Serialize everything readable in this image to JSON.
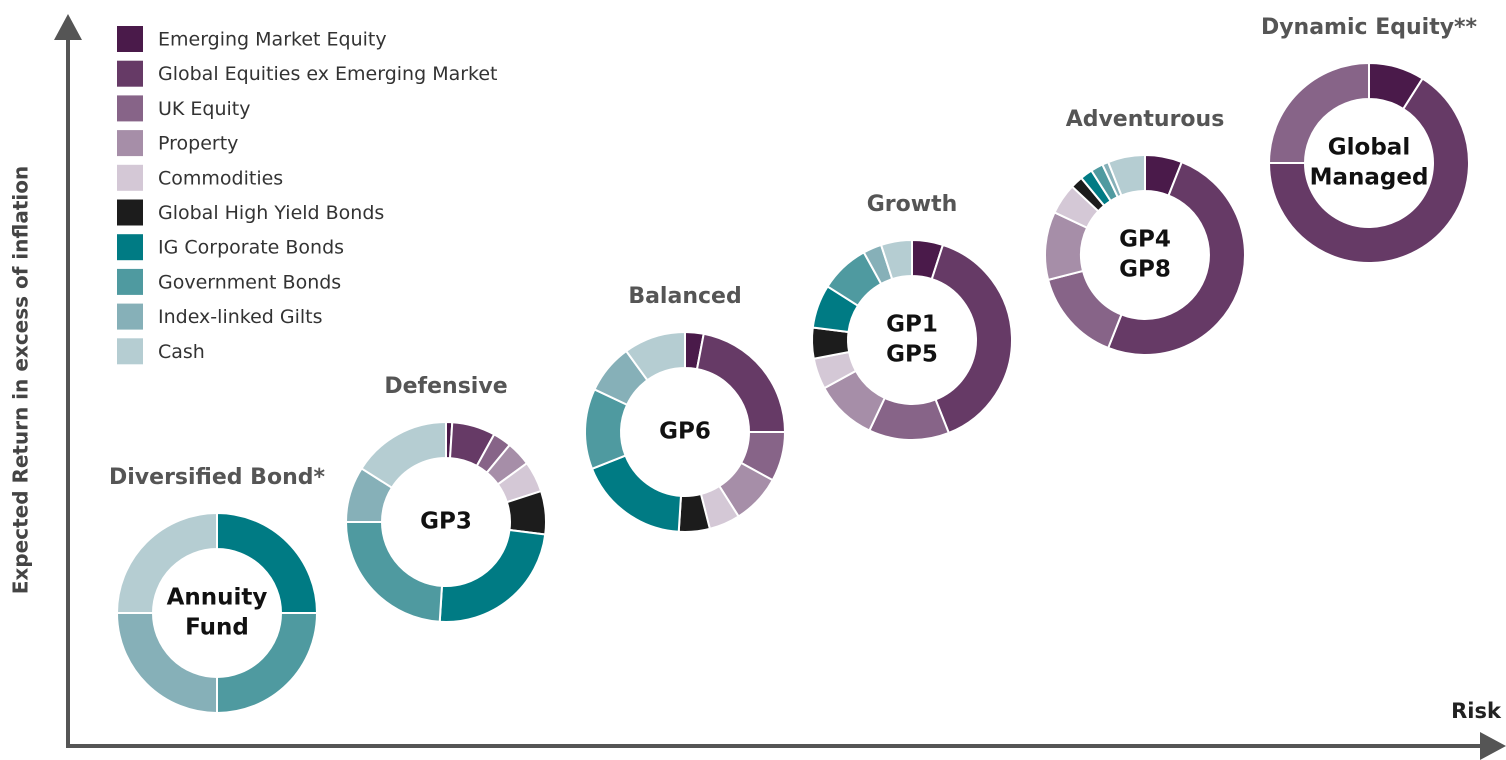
{
  "legend": [
    {
      "name": "Emerging Market Equity",
      "color": "#4a1a4a"
    },
    {
      "name": "Global Equities ex Emerging Market",
      "color": "#663a66"
    },
    {
      "name": "UK Equity",
      "color": "#876488"
    },
    {
      "name": "Property",
      "color": "#a68ea8"
    },
    {
      "name": "Commodities",
      "color": "#d4c8d6"
    },
    {
      "name": "Global High Yield Bonds",
      "color": "#1c1c1c"
    },
    {
      "name": "IG Corporate Bonds",
      "color": "#007b84"
    },
    {
      "name": "Government Bonds",
      "color": "#4f9aa0"
    },
    {
      "name": "Index-linked Gilts",
      "color": "#86b0b8"
    },
    {
      "name": "Cash",
      "color": "#b5cdd2"
    }
  ],
  "axes": {
    "y_label": "Expected Return in excess of inflation",
    "x_label": "Risk"
  },
  "chart_data": [
    {
      "type": "donut",
      "title": "Diversified Bond*",
      "center_label": [
        "Annuity",
        "Fund"
      ],
      "values": [
        0,
        0,
        0,
        0,
        0,
        0,
        25,
        25,
        25,
        25
      ]
    },
    {
      "type": "donut",
      "title": "Defensive",
      "center_label": [
        "GP3"
      ],
      "values": [
        1,
        7,
        3,
        4,
        5,
        7,
        24,
        24,
        9,
        16
      ]
    },
    {
      "type": "donut",
      "title": "Balanced",
      "center_label": [
        "GP6"
      ],
      "values": [
        3,
        22,
        8,
        8,
        5,
        5,
        18,
        13,
        8,
        10
      ]
    },
    {
      "type": "donut",
      "title": "Growth",
      "center_label": [
        "GP1",
        "GP5"
      ],
      "values": [
        5,
        39,
        13,
        10,
        5,
        5,
        7,
        8,
        3,
        5
      ]
    },
    {
      "type": "donut",
      "title": "Adventurous",
      "center_label": [
        "GP4",
        "GP8"
      ],
      "values": [
        6,
        50,
        15,
        11,
        5,
        2,
        2,
        2,
        1,
        6
      ]
    },
    {
      "type": "donut",
      "title": "Dynamic Equity**",
      "center_label": [
        "Global",
        "Managed"
      ],
      "values": [
        9,
        66,
        25,
        0,
        0,
        0,
        0,
        0,
        0,
        0
      ]
    }
  ]
}
